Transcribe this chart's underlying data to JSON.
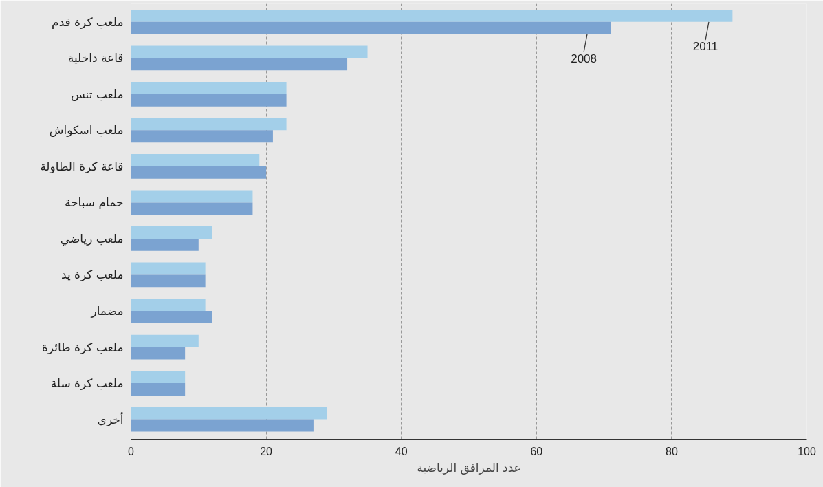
{
  "chart_data": {
    "type": "bar",
    "orientation": "horizontal",
    "xlabel": "عدد المرافق الرياضية",
    "categories": [
      "ملعب كرة قدم",
      "قاعة داخلية",
      "ملعب تنس",
      "ملعب اسكواش",
      "قاعة كرة الطاولة",
      "حمام سباحة",
      "ملعب رياضي",
      "ملعب كرة يد",
      "مضمار",
      "ملعب كرة طائرة",
      "ملعب كرة سلة",
      "أخرى"
    ],
    "series": [
      {
        "name": "2011",
        "color": "#a3cfe9",
        "values": [
          89,
          35,
          23,
          23,
          19,
          18,
          12,
          11,
          11,
          10,
          8,
          29
        ]
      },
      {
        "name": "2008",
        "color": "#7ba3d1",
        "values": [
          71,
          32,
          23,
          21,
          20,
          18,
          10,
          11,
          12,
          8,
          8,
          27
        ]
      }
    ],
    "xlim": [
      0,
      100
    ],
    "xticks": [
      0,
      20,
      40,
      60,
      80,
      100
    ],
    "grid": "x"
  }
}
